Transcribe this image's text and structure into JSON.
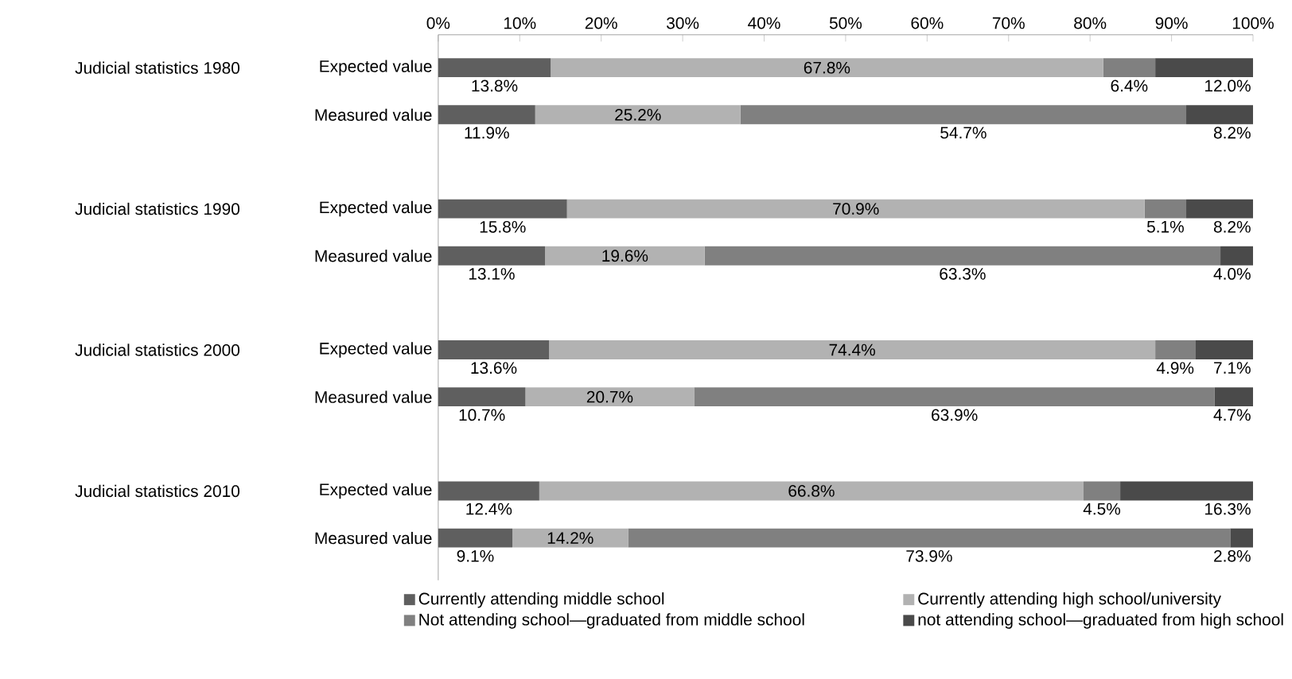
{
  "chart_data": {
    "type": "bar",
    "orientation": "horizontal",
    "stacked": true,
    "categories": [
      "Expected value",
      "Measured value",
      "Expected value",
      "Measured value",
      "Expected value",
      "Measured value",
      "Expected value",
      "Measured value"
    ],
    "annotations": [
      "Judicial statistics 1980",
      "Judicial statistics 1990",
      "Judicial statistics 2000",
      "Judicial statistics 2010"
    ],
    "series": [
      {
        "name": "Currently attending middle school",
        "color": "#5f5f5f",
        "values": [
          13.8,
          11.9,
          15.8,
          13.1,
          13.6,
          10.7,
          12.4,
          9.1
        ],
        "value_labels": [
          "13.8%",
          "11.9%",
          "15.8%",
          "13.1%",
          "13.6%",
          "10.7%",
          "12.4%",
          "9.1%"
        ]
      },
      {
        "name": "Currently attending high school/university",
        "color": "#b2b2b2",
        "values": [
          67.8,
          25.2,
          70.9,
          19.6,
          74.4,
          20.7,
          66.8,
          14.2
        ],
        "value_labels": [
          "67.8%",
          "25.2%",
          "70.9%",
          "19.6%",
          "74.4%",
          "20.7%",
          "66.8%",
          "14.2%"
        ]
      },
      {
        "name": "Not attending school—graduated from middle school",
        "color": "#808080",
        "values": [
          6.4,
          54.7,
          5.1,
          63.3,
          4.9,
          63.9,
          4.5,
          73.9
        ],
        "value_labels": [
          "6.4%",
          "54.7%",
          "5.1%",
          "63.3%",
          "4.9%",
          "63.9%",
          "4.5%",
          "73.9%"
        ]
      },
      {
        "name": "not attending school—graduated from high school",
        "color": "#4a4a4a",
        "values": [
          12.0,
          8.2,
          8.2,
          4.0,
          7.1,
          4.7,
          16.3,
          2.8
        ],
        "value_labels": [
          "12.0%",
          "8.2%",
          "8.2%",
          "4.0%",
          "7.1%",
          "4.7%",
          "16.3%",
          "2.8%"
        ]
      }
    ],
    "xlim": [
      0,
      100
    ],
    "xticks": [
      {
        "value": 0,
        "label": "0%"
      },
      {
        "value": 10,
        "label": "10%"
      },
      {
        "value": 20,
        "label": "20%"
      },
      {
        "value": 30,
        "label": "30%"
      },
      {
        "value": 40,
        "label": "40%"
      },
      {
        "value": 50,
        "label": "50%"
      },
      {
        "value": 60,
        "label": "60%"
      },
      {
        "value": 70,
        "label": "70%"
      },
      {
        "value": 80,
        "label": "80%"
      },
      {
        "value": 90,
        "label": "90%"
      },
      {
        "value": 100,
        "label": "100%"
      }
    ],
    "legend": "bottom"
  }
}
